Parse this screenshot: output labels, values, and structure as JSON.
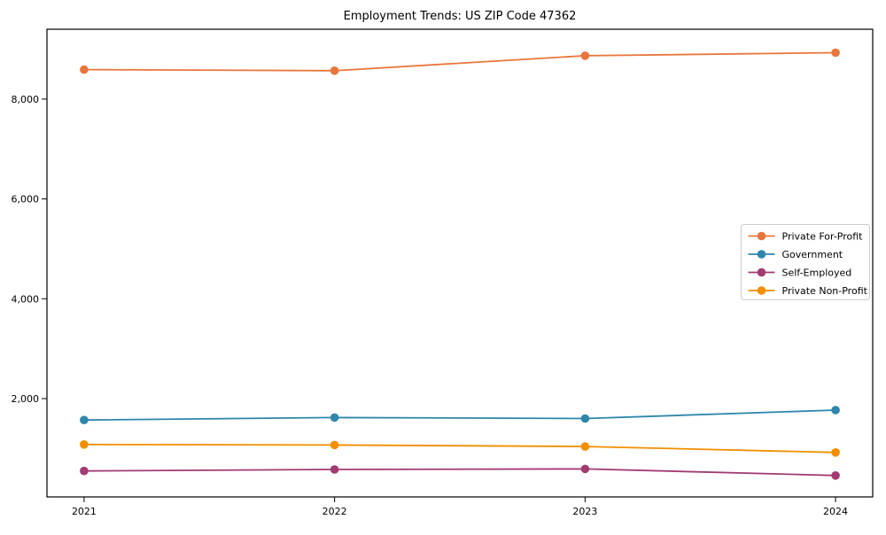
{
  "page": {
    "background": "#ffffff",
    "frame_color": "#000000"
  },
  "chart_data": {
    "type": "line",
    "title": "Employment Trends: US ZIP Code 47362",
    "xlabel": "",
    "ylabel": "",
    "grid": false,
    "legend_position": "center-right",
    "x": [
      2021,
      2022,
      2023,
      2024
    ],
    "x_tick_labels": [
      "2021",
      "2022",
      "2023",
      "2024"
    ],
    "y_ticks": [
      2000,
      4000,
      6000,
      8000
    ],
    "y_tick_labels": [
      "2,000",
      "4,000",
      "6,000",
      "8,000"
    ],
    "ylim": [
      30,
      9400
    ],
    "series": [
      {
        "name": "Private For-Profit",
        "color": "#E8763C",
        "values": [
          8590,
          8570,
          8870,
          8930
        ]
      },
      {
        "name": "Government",
        "color": "#2E86AB",
        "values": [
          1570,
          1620,
          1600,
          1770
        ]
      },
      {
        "name": "Self-Employed",
        "color": "#A23B72",
        "values": [
          550,
          580,
          590,
          460
        ]
      },
      {
        "name": "Private Non-Profit",
        "color": "#F18F01",
        "values": [
          1080,
          1070,
          1040,
          920
        ]
      }
    ]
  }
}
